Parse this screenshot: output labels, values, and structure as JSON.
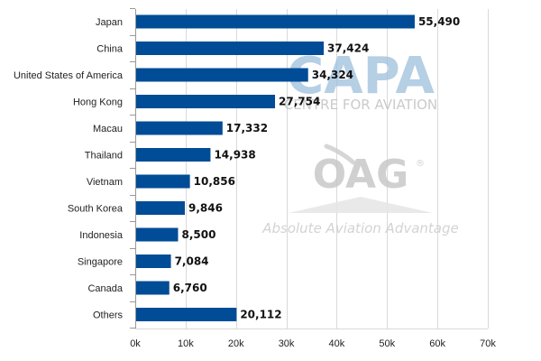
{
  "colors": {
    "bar": "#004c97",
    "grid": "#d9d9d9",
    "axis": "#999999",
    "capa_blue": "#9dbfdc",
    "oag_gray": "#cfcfcf",
    "tagline_gray": "#cccccc"
  },
  "watermarks": {
    "capa_big": "CAPA",
    "capa_sub": "CENTRE FOR AVIATION",
    "oag_big": "OAG",
    "oag_reg": "®",
    "oag_tagline": "Absolute Aviation Advantage"
  },
  "chart_data": {
    "type": "bar",
    "orientation": "horizontal",
    "categories": [
      "Japan",
      "China",
      "United States of America",
      "Hong Kong",
      "Macau",
      "Thailand",
      "Vietnam",
      "South Korea",
      "Indonesia",
      "Singapore",
      "Canada",
      "Others"
    ],
    "values": [
      55490,
      37424,
      34324,
      27754,
      17332,
      14938,
      10856,
      9846,
      8500,
      7084,
      6760,
      20112
    ],
    "value_labels": [
      "55,490",
      "37,424",
      "34,324",
      "27,754",
      "17,332",
      "14,938",
      "10,856",
      "9,846",
      "8,500",
      "7,084",
      "6,760",
      "20,112"
    ],
    "x_ticks": [
      0,
      10000,
      20000,
      30000,
      40000,
      50000,
      60000,
      70000
    ],
    "x_tick_labels": [
      "0k",
      "10k",
      "20k",
      "30k",
      "40k",
      "50k",
      "60k",
      "70k"
    ],
    "xlim": [
      0,
      70000
    ],
    "grid": true,
    "legend": false,
    "title": "",
    "xlabel": "",
    "ylabel": ""
  }
}
